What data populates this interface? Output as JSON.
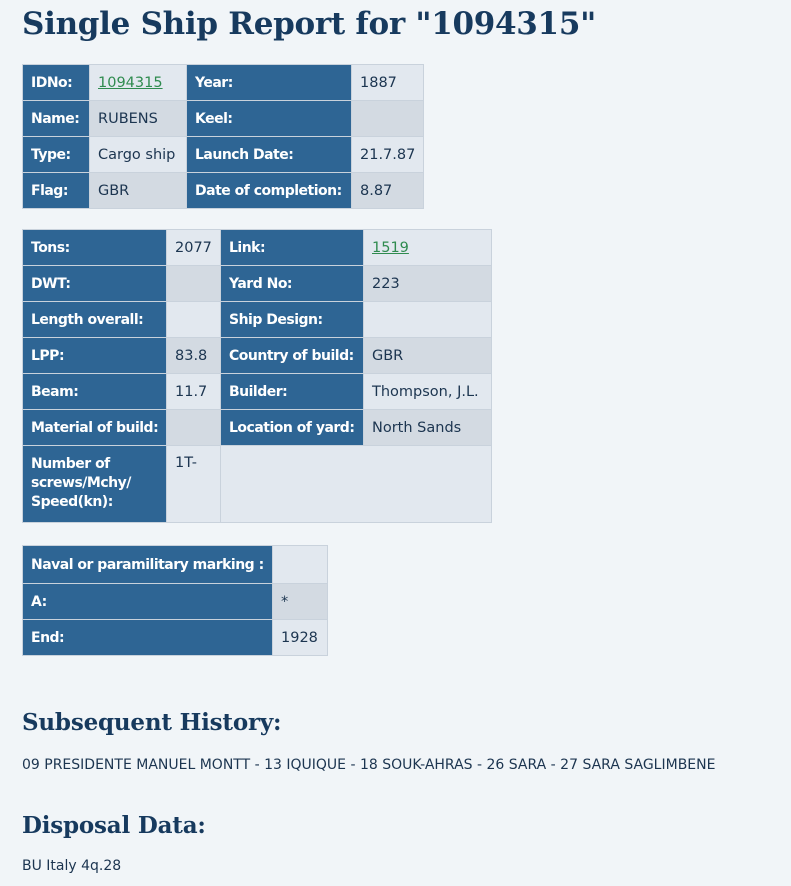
{
  "page_title": "Single Ship Report for \"1094315\"",
  "table1": {
    "rows": [
      {
        "l1": "IDNo:",
        "v1": "1094315",
        "l2": "Year:",
        "v2": "1887"
      },
      {
        "l1": "Name:",
        "v1": "RUBENS",
        "l2": "Keel:",
        "v2": ""
      },
      {
        "l1": "Type:",
        "v1": "Cargo ship",
        "l2": "Launch Date:",
        "v2": "21.7.87"
      },
      {
        "l1": "Flag:",
        "v1": "GBR",
        "l2": "Date of completion:",
        "v2": "8.87"
      }
    ]
  },
  "table2": {
    "rows": [
      {
        "l1": "Tons:",
        "v1": "2077",
        "l2": "Link:",
        "v2": "1519"
      },
      {
        "l1": "DWT:",
        "v1": "",
        "l2": "Yard No:",
        "v2": "223"
      },
      {
        "l1": "Length overall:",
        "v1": "",
        "l2": "Ship Design:",
        "v2": ""
      },
      {
        "l1": "LPP:",
        "v1": "83.8",
        "l2": "Country of build:",
        "v2": "GBR"
      },
      {
        "l1": "Beam:",
        "v1": "11.7",
        "l2": "Builder:",
        "v2": "Thompson, J.L."
      },
      {
        "l1": "Material of build:",
        "v1": "",
        "l2": "Location of yard:",
        "v2": "North Sands"
      },
      {
        "l1": "Number of screws/Mchy/ Speed(kn):",
        "v1": "1T-"
      }
    ]
  },
  "table3": {
    "rows": [
      {
        "l": "Naval or paramilitary marking :",
        "v": ""
      },
      {
        "l": "A:",
        "v": "*"
      },
      {
        "l": "End:",
        "v": "1928"
      }
    ]
  },
  "subsequent_history": {
    "heading": "Subsequent History:",
    "text": "09 PRESIDENTE MANUEL MONTT - 13 IQUIQUE - 18 SOUK-AHRAS - 26 SARA - 27 SARA SAGLIMBENE"
  },
  "disposal_data": {
    "heading": "Disposal Data:",
    "text": "BU Italy 4q.28"
  },
  "colors": {
    "label_bg": "#2e6594",
    "value_bg": "#e2e8ef",
    "value_bg_alt": "#d3dae2",
    "link": "#2f8b4f",
    "heading": "#173a5e",
    "page_bg": "#f1f5f8"
  }
}
